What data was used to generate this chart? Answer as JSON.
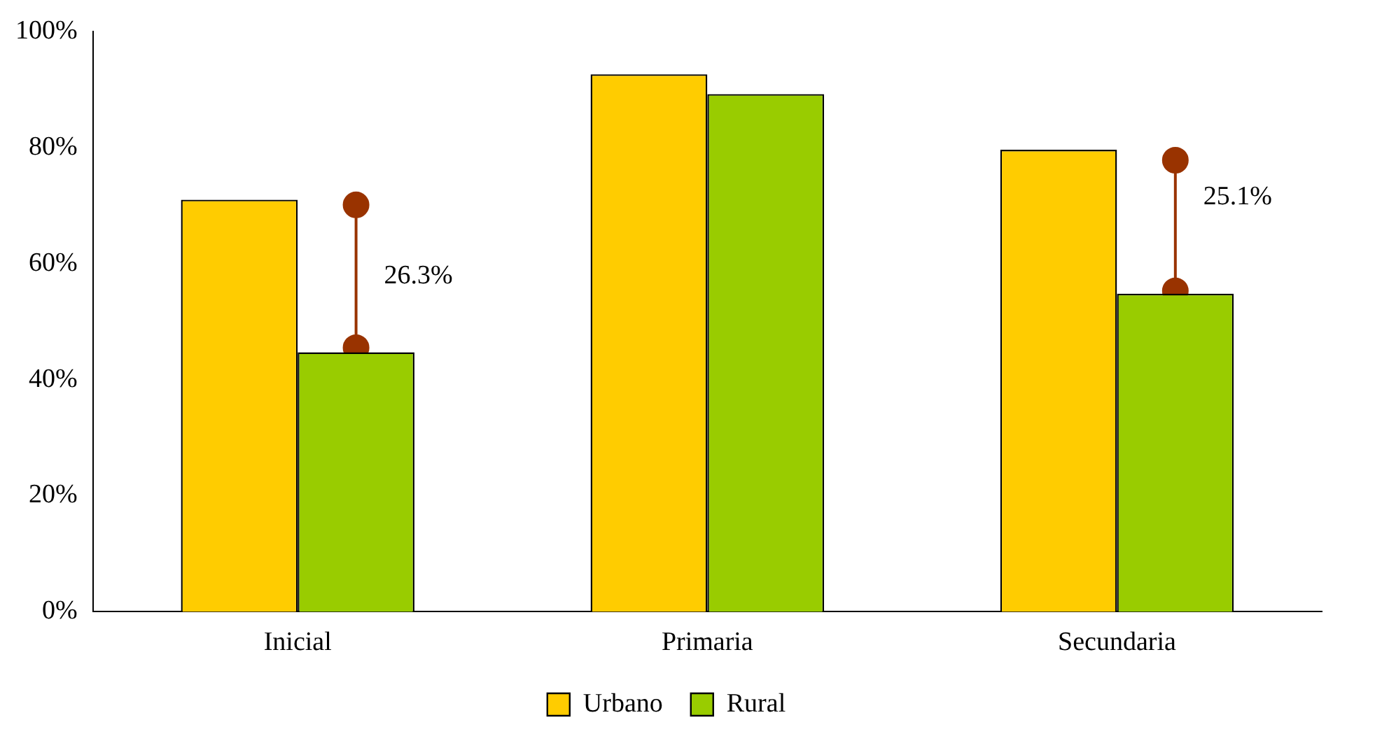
{
  "chart_data": {
    "type": "bar",
    "categories": [
      "Inicial",
      "Primaria",
      "Secundaria"
    ],
    "series": [
      {
        "name": "Urbano",
        "color": "#ffcc00",
        "values": [
          71,
          92.6,
          79.6
        ]
      },
      {
        "name": "Rural",
        "color": "#99cc00",
        "values": [
          44.7,
          89.2,
          54.8
        ]
      },
      {
        "type": "scatter",
        "color": "#993300",
        "x": [
          "Inicial",
          "Secundaria"
        ],
        "values": [
          70.1,
          77.8
        ]
      },
      {
        "type": "scatter",
        "color": "#993300",
        "x": [
          "Inicial",
          "Secundaria"
        ],
        "values": [
          45.5,
          55.3
        ]
      }
    ],
    "annotations": [
      "26.3%",
      "25.1%"
    ],
    "ylim": [
      0,
      100
    ],
    "yticks": [
      {
        "value": 0,
        "label": "0%"
      },
      {
        "value": 20,
        "label": "20%"
      },
      {
        "value": 40,
        "label": "40%"
      },
      {
        "value": 60,
        "label": "60%"
      },
      {
        "value": 80,
        "label": "80%"
      },
      {
        "value": 100,
        "label": "100%"
      }
    ],
    "grid": false,
    "legend": "bottom"
  }
}
